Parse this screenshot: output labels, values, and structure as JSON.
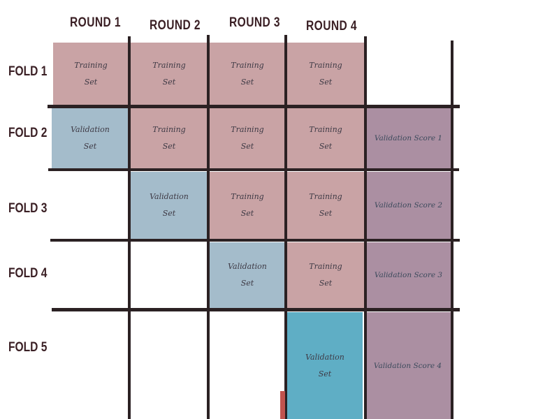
{
  "rounds": [
    "ROUND 1",
    "ROUND 2",
    "ROUND 3",
    "ROUND 4"
  ],
  "folds": [
    "FOLD 1",
    "FOLD 2",
    "FOLD 3",
    "FOLD 4",
    "FOLD 5"
  ],
  "cell_text": {
    "training_line1": "Training",
    "training_line2": "Set",
    "validation_line1": "Validation",
    "validation_line2": "Set"
  },
  "scores": [
    "Validation Score 1",
    "Validation Score 2",
    "Validation Score 3",
    "Validation Score 4"
  ],
  "colors": {
    "training": "#c9a3a5",
    "validation": "#a4bccb",
    "validation_highlight": "#5faec5",
    "score": "#ab8fa2",
    "grid": "#2b2123"
  }
}
